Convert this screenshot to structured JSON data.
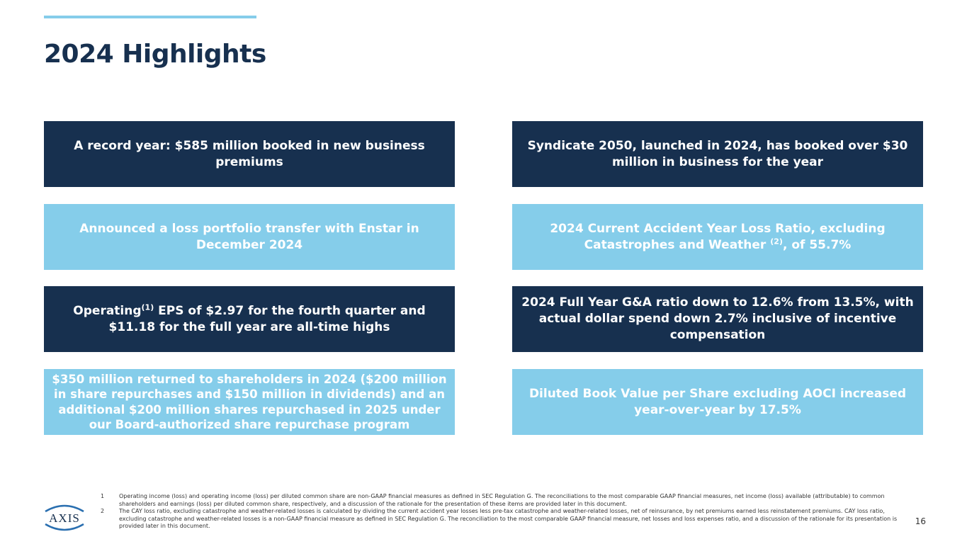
{
  "title": "2024 Highlights",
  "highlights": [
    {
      "text": "A record year: $585 million booked in new business premiums"
    },
    {
      "text": "Syndicate 2050, launched in 2024, has booked over $30 million in business for the year"
    },
    {
      "text": "Announced a loss portfolio transfer with Enstar in December 2024"
    },
    {
      "pre": "2024 Current Accident Year Loss Ratio, excluding Catastrophes and Weather ",
      "sup": "(2)",
      "post": ", of 55.7%"
    },
    {
      "pre": "Operating",
      "sup": "(1)",
      "post": " EPS of $2.97 for the fourth quarter and $11.18 for the full year are all-time highs"
    },
    {
      "text": "2024 Full Year G&A ratio down to 12.6% from 13.5%, with actual dollar spend down 2.7% inclusive of incentive compensation"
    },
    {
      "text": "$350 million returned to shareholders in 2024 ($200 million in share repurchases and $150 million in dividends) and an additional $200 million shares repurchased in 2025 under our Board-authorized share repurchase program"
    },
    {
      "text": "Diluted Book Value per Share excluding AOCI increased year-over-year by 17.5%"
    }
  ],
  "footnotes": [
    {
      "num": "1",
      "text": "Operating income (loss) and operating income (loss) per diluted common share are non-GAAP financial measures as defined in SEC Regulation G. The reconciliations to the most comparable GAAP financial measures, net income (loss) available (attributable) to common shareholders and earnings (loss) per diluted common share, respectively, and a discussion of the rationale for the presentation of these items are provided later in this document."
    },
    {
      "num": "2",
      "text": "The CAY loss ratio, excluding catastrophe and weather-related losses is calculated by dividing the current accident year losses less pre-tax catastrophe and weather-related losses, net of reinsurance, by net premiums earned less reinstatement premiums. CAY loss ratio, excluding catastrophe and weather-related losses is a non-GAAP financial measure as defined in SEC Regulation G. The reconciliation to the most comparable GAAP financial measure, net losses and loss expenses ratio, and a discussion of the rationale for its presentation is provided later in this document."
    }
  ],
  "logo_text": "AXIS",
  "page_number": "16",
  "colors": {
    "dark": "#17304f",
    "light": "#85cdea",
    "accent": "#85cdea"
  }
}
